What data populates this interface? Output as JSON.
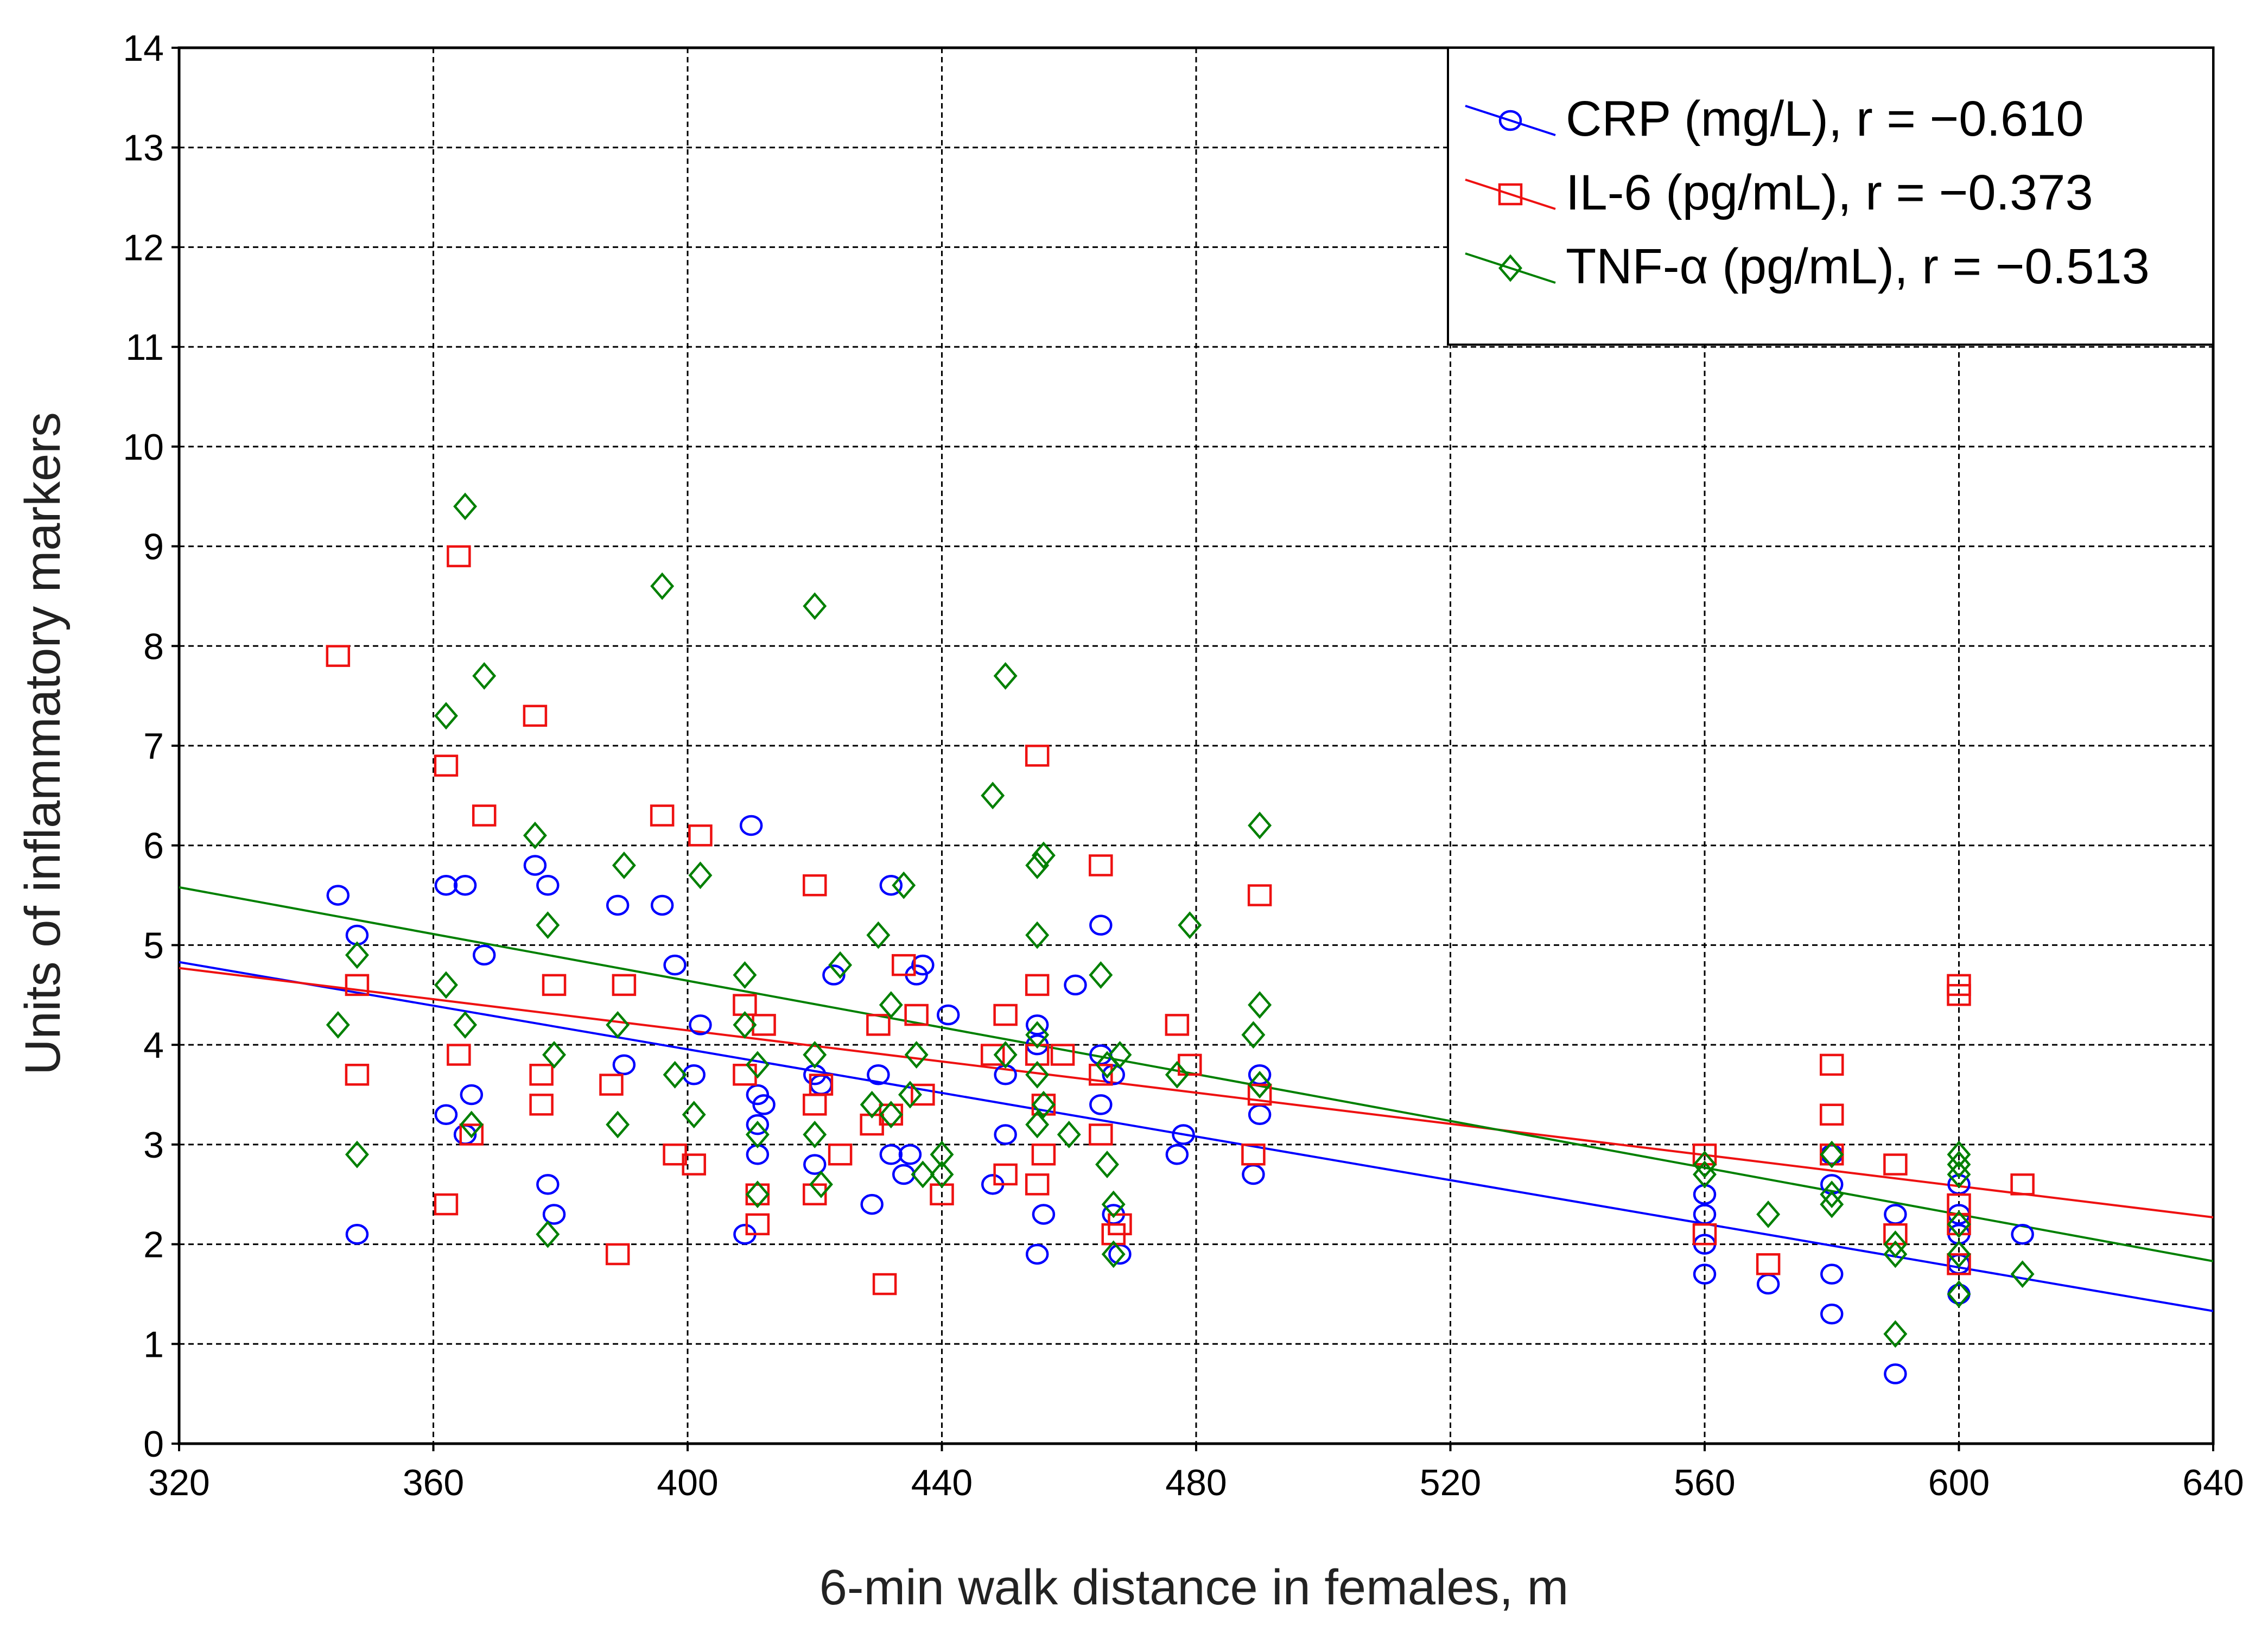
{
  "chart_data": {
    "type": "scatter",
    "title": "",
    "xlabel": "6-min walk distance in females, m",
    "ylabel": "Units of inflammatory markers",
    "xlim": [
      320,
      640
    ],
    "ylim": [
      0,
      14
    ],
    "xticks": [
      "320",
      "360",
      "400",
      "440",
      "480",
      "520",
      "560",
      "600",
      "640"
    ],
    "yticks": [
      "0",
      "1",
      "2",
      "3",
      "4",
      "5",
      "6",
      "7",
      "8",
      "9",
      "10",
      "11",
      "12",
      "13",
      "14"
    ],
    "grid": true,
    "legend_position": "top-right",
    "series": [
      {
        "name": "CRP (mg/L), r = −0.610",
        "marker": "circle",
        "color": "#0000ff",
        "fit": {
          "x": [
            320,
            640
          ],
          "y": [
            4.83,
            1.33
          ]
        },
        "points": [
          [
            345,
            5.5
          ],
          [
            348,
            5.1
          ],
          [
            348,
            2.1
          ],
          [
            362,
            5.6
          ],
          [
            362,
            3.3
          ],
          [
            365,
            5.6
          ],
          [
            365,
            3.1
          ],
          [
            366,
            3.5
          ],
          [
            368,
            4.9
          ],
          [
            376,
            5.8
          ],
          [
            378,
            5.6
          ],
          [
            378,
            2.6
          ],
          [
            379,
            2.3
          ],
          [
            389,
            5.4
          ],
          [
            390,
            3.8
          ],
          [
            396,
            5.4
          ],
          [
            398,
            4.8
          ],
          [
            401,
            3.7
          ],
          [
            402,
            4.2
          ],
          [
            409,
            2.1
          ],
          [
            410,
            6.2
          ],
          [
            411,
            3.5
          ],
          [
            411,
            3.2
          ],
          [
            411,
            2.9
          ],
          [
            412,
            3.4
          ],
          [
            420,
            3.7
          ],
          [
            420,
            2.8
          ],
          [
            421,
            3.6
          ],
          [
            423,
            4.7
          ],
          [
            429,
            2.4
          ],
          [
            430,
            3.7
          ],
          [
            432,
            5.6
          ],
          [
            432,
            2.9
          ],
          [
            434,
            2.7
          ],
          [
            435,
            2.9
          ],
          [
            436,
            4.7
          ],
          [
            437,
            4.8
          ],
          [
            441,
            4.3
          ],
          [
            448,
            2.6
          ],
          [
            450,
            3.7
          ],
          [
            450,
            3.1
          ],
          [
            455,
            4.2
          ],
          [
            455,
            4.0
          ],
          [
            455,
            1.9
          ],
          [
            456,
            2.3
          ],
          [
            461,
            4.6
          ],
          [
            465,
            5.2
          ],
          [
            465,
            3.9
          ],
          [
            465,
            3.4
          ],
          [
            467,
            3.7
          ],
          [
            467,
            2.3
          ],
          [
            468,
            1.9
          ],
          [
            477,
            2.9
          ],
          [
            478,
            3.1
          ],
          [
            489,
            2.7
          ],
          [
            490,
            3.7
          ],
          [
            490,
            3.3
          ],
          [
            560,
            2.5
          ],
          [
            560,
            2.3
          ],
          [
            560,
            2.0
          ],
          [
            560,
            1.7
          ],
          [
            570,
            1.6
          ],
          [
            580,
            2.9
          ],
          [
            580,
            2.6
          ],
          [
            580,
            1.7
          ],
          [
            580,
            1.3
          ],
          [
            590,
            2.3
          ],
          [
            590,
            0.7
          ],
          [
            600,
            2.6
          ],
          [
            600,
            2.3
          ],
          [
            600,
            2.1
          ],
          [
            600,
            1.8
          ],
          [
            600,
            1.5
          ],
          [
            610,
            2.1
          ]
        ]
      },
      {
        "name": "IL-6 (pg/mL), r = −0.373",
        "marker": "square",
        "color": "#ee1111",
        "fit": {
          "x": [
            320,
            640
          ],
          "y": [
            4.77,
            2.27
          ]
        },
        "points": [
          [
            345,
            7.9
          ],
          [
            348,
            4.6
          ],
          [
            348,
            3.7
          ],
          [
            362,
            6.8
          ],
          [
            362,
            2.4
          ],
          [
            364,
            8.9
          ],
          [
            364,
            3.9
          ],
          [
            366,
            3.1
          ],
          [
            368,
            6.3
          ],
          [
            376,
            7.3
          ],
          [
            377,
            3.7
          ],
          [
            377,
            3.4
          ],
          [
            379,
            4.6
          ],
          [
            388,
            3.6
          ],
          [
            389,
            1.9
          ],
          [
            390,
            4.6
          ],
          [
            396,
            6.3
          ],
          [
            398,
            2.9
          ],
          [
            401,
            2.8
          ],
          [
            402,
            6.1
          ],
          [
            409,
            4.4
          ],
          [
            409,
            3.7
          ],
          [
            411,
            2.5
          ],
          [
            411,
            2.2
          ],
          [
            412,
            4.2
          ],
          [
            420,
            5.6
          ],
          [
            420,
            3.4
          ],
          [
            420,
            2.5
          ],
          [
            421,
            3.6
          ],
          [
            424,
            2.9
          ],
          [
            429,
            3.2
          ],
          [
            430,
            4.2
          ],
          [
            431,
            1.6
          ],
          [
            432,
            3.3
          ],
          [
            434,
            4.8
          ],
          [
            436,
            4.3
          ],
          [
            437,
            3.5
          ],
          [
            440,
            2.5
          ],
          [
            448,
            3.9
          ],
          [
            450,
            4.3
          ],
          [
            450,
            2.7
          ],
          [
            455,
            6.9
          ],
          [
            455,
            4.6
          ],
          [
            455,
            3.9
          ],
          [
            455,
            2.6
          ],
          [
            456,
            3.4
          ],
          [
            456,
            2.9
          ],
          [
            459,
            3.9
          ],
          [
            465,
            5.8
          ],
          [
            465,
            3.7
          ],
          [
            465,
            3.1
          ],
          [
            467,
            2.1
          ],
          [
            468,
            2.2
          ],
          [
            477,
            4.2
          ],
          [
            479,
            3.8
          ],
          [
            490,
            5.5
          ],
          [
            490,
            3.5
          ],
          [
            489,
            2.9
          ],
          [
            560,
            2.9
          ],
          [
            560,
            2.1
          ],
          [
            570,
            1.8
          ],
          [
            580,
            3.8
          ],
          [
            580,
            3.3
          ],
          [
            580,
            2.9
          ],
          [
            590,
            2.8
          ],
          [
            590,
            2.1
          ],
          [
            600,
            4.6
          ],
          [
            600,
            4.5
          ],
          [
            600,
            2.4
          ],
          [
            600,
            2.2
          ],
          [
            600,
            1.8
          ],
          [
            610,
            2.6
          ]
        ]
      },
      {
        "name": "TNF-α (pg/mL), r = −0.513",
        "marker": "diamond",
        "color": "#008000",
        "fit": {
          "x": [
            320,
            640
          ],
          "y": [
            5.58,
            1.83
          ]
        },
        "points": [
          [
            345,
            4.2
          ],
          [
            348,
            4.9
          ],
          [
            348,
            2.9
          ],
          [
            362,
            7.3
          ],
          [
            362,
            4.6
          ],
          [
            365,
            9.4
          ],
          [
            365,
            4.2
          ],
          [
            366,
            3.2
          ],
          [
            368,
            7.7
          ],
          [
            376,
            6.1
          ],
          [
            378,
            5.2
          ],
          [
            378,
            2.1
          ],
          [
            379,
            3.9
          ],
          [
            389,
            4.2
          ],
          [
            389,
            3.2
          ],
          [
            390,
            5.8
          ],
          [
            396,
            8.6
          ],
          [
            398,
            3.7
          ],
          [
            401,
            3.3
          ],
          [
            402,
            5.7
          ],
          [
            409,
            4.7
          ],
          [
            409,
            4.2
          ],
          [
            411,
            3.8
          ],
          [
            411,
            3.1
          ],
          [
            411,
            2.5
          ],
          [
            420,
            8.4
          ],
          [
            420,
            3.9
          ],
          [
            420,
            3.1
          ],
          [
            421,
            2.6
          ],
          [
            424,
            4.8
          ],
          [
            429,
            3.4
          ],
          [
            430,
            5.1
          ],
          [
            432,
            4.4
          ],
          [
            432,
            3.3
          ],
          [
            434,
            5.6
          ],
          [
            435,
            3.5
          ],
          [
            436,
            3.9
          ],
          [
            437,
            2.7
          ],
          [
            440,
            2.9
          ],
          [
            440,
            2.7
          ],
          [
            448,
            6.5
          ],
          [
            450,
            7.7
          ],
          [
            450,
            3.9
          ],
          [
            455,
            5.8
          ],
          [
            455,
            5.1
          ],
          [
            455,
            4.1
          ],
          [
            455,
            3.7
          ],
          [
            455,
            3.2
          ],
          [
            456,
            5.9
          ],
          [
            456,
            3.4
          ],
          [
            460,
            3.1
          ],
          [
            465,
            4.7
          ],
          [
            466,
            3.8
          ],
          [
            466,
            2.8
          ],
          [
            467,
            2.4
          ],
          [
            467,
            1.9
          ],
          [
            468,
            3.9
          ],
          [
            477,
            3.7
          ],
          [
            479,
            5.2
          ],
          [
            489,
            4.1
          ],
          [
            490,
            6.2
          ],
          [
            490,
            4.4
          ],
          [
            490,
            3.6
          ],
          [
            560,
            2.8
          ],
          [
            560,
            2.7
          ],
          [
            570,
            2.3
          ],
          [
            580,
            2.9
          ],
          [
            580,
            2.5
          ],
          [
            580,
            2.4
          ],
          [
            590,
            2.0
          ],
          [
            590,
            1.9
          ],
          [
            590,
            1.1
          ],
          [
            600,
            2.9
          ],
          [
            600,
            2.8
          ],
          [
            600,
            2.7
          ],
          [
            600,
            2.2
          ],
          [
            600,
            1.9
          ],
          [
            600,
            1.5
          ],
          [
            610,
            1.7
          ]
        ]
      }
    ]
  }
}
